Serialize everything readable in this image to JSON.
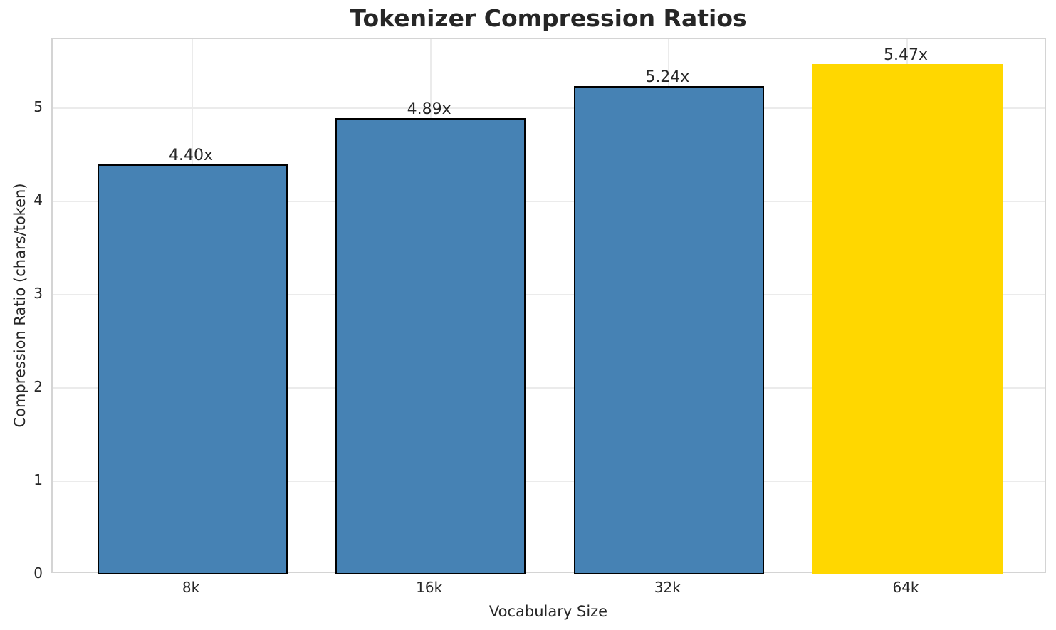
{
  "chart_data": {
    "type": "bar",
    "title": "Tokenizer Compression Ratios",
    "xlabel": "Vocabulary Size",
    "ylabel": "Compression Ratio (chars/token)",
    "categories": [
      "8k",
      "16k",
      "32k",
      "64k"
    ],
    "values": [
      4.4,
      4.89,
      5.24,
      5.47
    ],
    "bar_labels": [
      "4.40x",
      "4.89x",
      "5.24x",
      "5.47x"
    ],
    "yticks": [
      0,
      1,
      2,
      3,
      4,
      5
    ],
    "ylim": [
      0,
      5.74
    ],
    "grid": true,
    "legend": "none",
    "highlight_category": "64k",
    "bar_colors": [
      "#4682B4",
      "#4682B4",
      "#4682B4",
      "#FFD700"
    ],
    "bar_edge_colors": [
      "#000000",
      "#000000",
      "#000000",
      "none"
    ]
  },
  "colors": {
    "bar_blue": "#4682B4",
    "bar_gold": "#FFD700",
    "bar_edge": "#000000",
    "grid": "#EBEBEB",
    "spine": "#D4D4D4",
    "text": "#262626",
    "background": "#FFFFFF"
  }
}
